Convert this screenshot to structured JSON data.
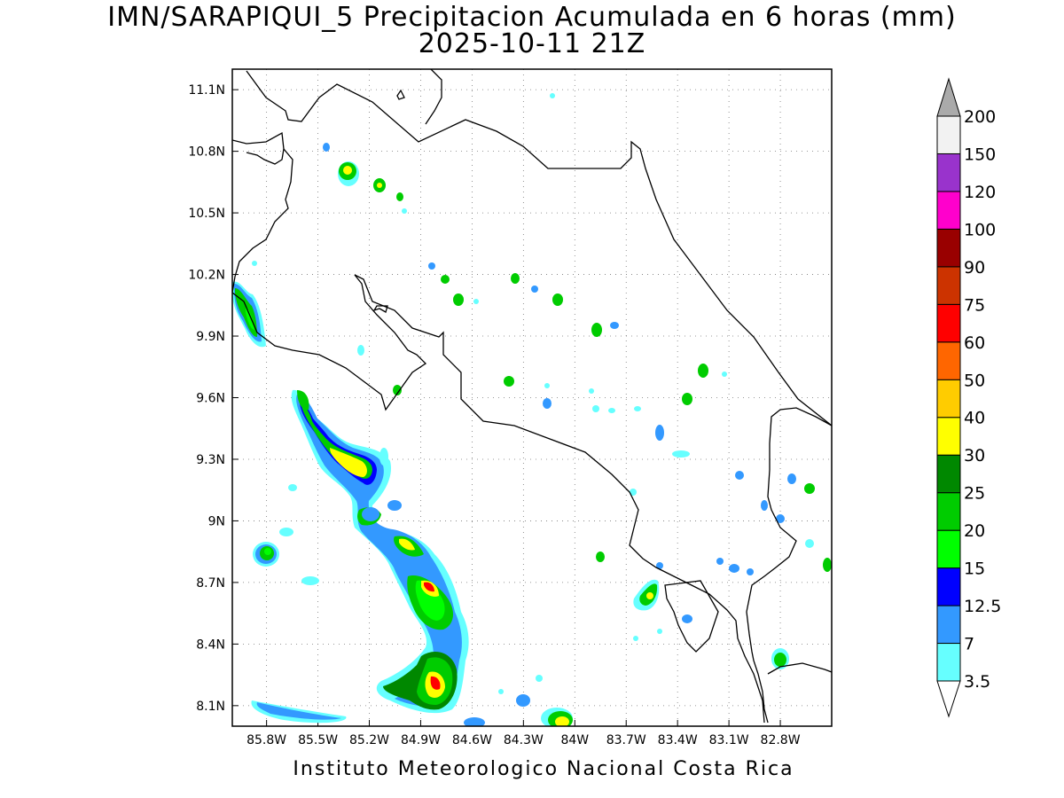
{
  "title": "IMN/SARAPIQUI_5 Precipitacion Acumulada en 6 horas (mm)",
  "subtitle": "2025-10-11 21Z",
  "footer": "Instituto Meteorologico Nacional Costa Rica",
  "map": {
    "lon_range": [
      -86.0,
      -82.5
    ],
    "lat_range": [
      8.0,
      11.2
    ],
    "grid": "dotted",
    "lat_ticks": [
      "8.1N",
      "8.4N",
      "8.7N",
      "9N",
      "9.3N",
      "9.6N",
      "9.9N",
      "10.2N",
      "10.5N",
      "10.8N",
      "11.1N"
    ],
    "lon_ticks": [
      "85.8W",
      "85.5W",
      "85.2W",
      "84.9W",
      "84.6W",
      "84.3W",
      "84W",
      "83.7W",
      "83.4W",
      "83.1W",
      "82.8W"
    ]
  },
  "colorbar": {
    "levels": [
      "3.5",
      "7",
      "12.5",
      "15",
      "20",
      "25",
      "30",
      "40",
      "50",
      "60",
      "75",
      "90",
      "100",
      "120",
      "150",
      "200"
    ],
    "colors": [
      "#66ffff",
      "#3399ff",
      "#0000ff",
      "#00ff00",
      "#00cc00",
      "#008800",
      "#ffff00",
      "#ffcc00",
      "#ff6600",
      "#ff0000",
      "#cc3300",
      "#990000",
      "#ff00cc",
      "#9933cc",
      "#f2f2f2",
      "#aaaaaa"
    ]
  }
}
